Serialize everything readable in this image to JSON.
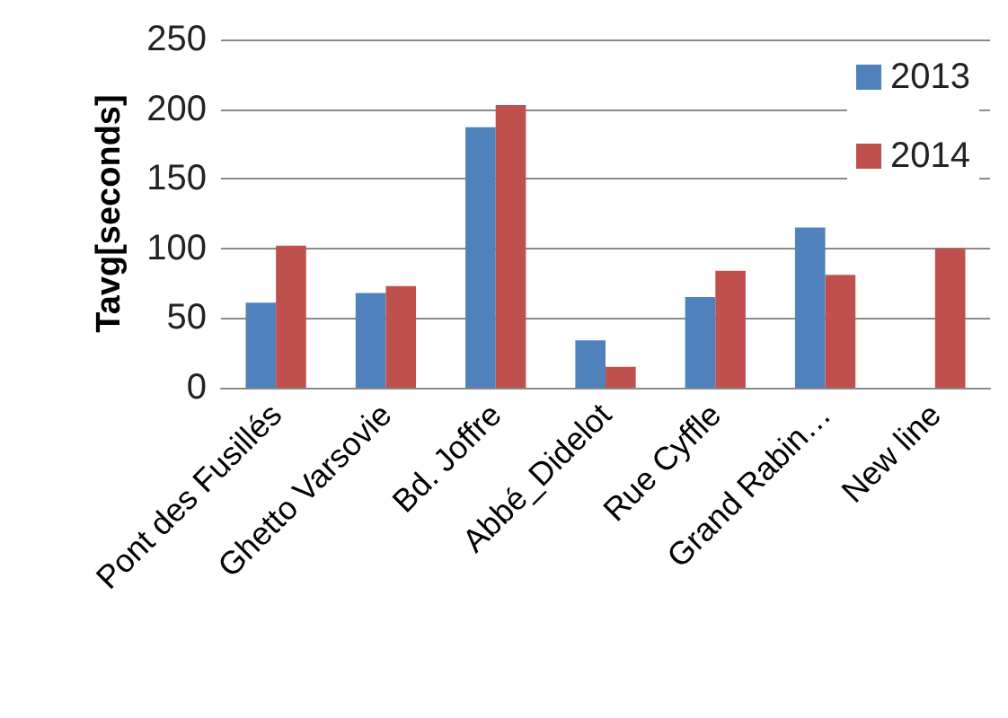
{
  "chart_data": {
    "type": "bar",
    "ylabel": "Tavg[seconds]",
    "categories": [
      "Pont des Fusillés",
      "Ghetto Varsovie",
      "Bd. Joffre",
      "Abbé_Didelot",
      "Rue Cyffle",
      "Grand Rabin…",
      "New line"
    ],
    "series": [
      {
        "name": "2013",
        "color": "#4f81bd",
        "values": [
          61,
          68,
          187,
          34,
          65,
          115,
          null
        ]
      },
      {
        "name": "2014",
        "color": "#c0504d",
        "values": [
          102,
          73,
          203,
          15,
          84,
          81,
          100
        ]
      }
    ],
    "ylim": [
      0,
      250
    ],
    "yticks": [
      0,
      50,
      100,
      150,
      200,
      250
    ],
    "grid": "y",
    "legend": "top right"
  }
}
